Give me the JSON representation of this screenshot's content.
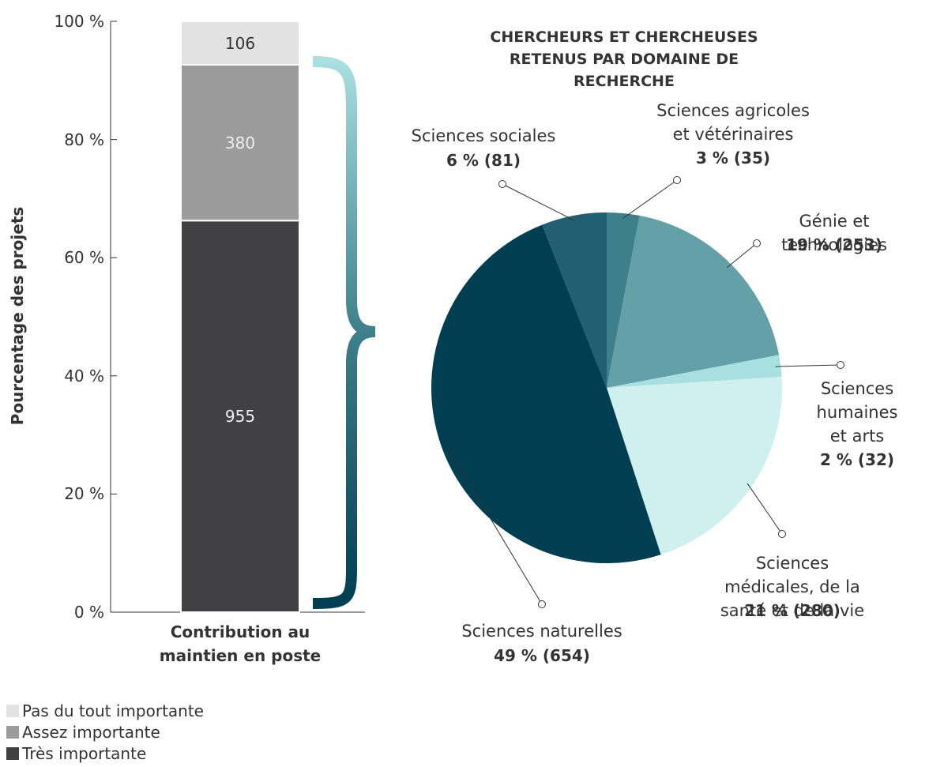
{
  "chart_data": [
    {
      "type": "bar",
      "stack": "percent",
      "categories": [
        "Contribution au\nmaintien en poste"
      ],
      "series": [
        {
          "name": "Très importante",
          "color": "#414143",
          "values": [
            955
          ]
        },
        {
          "name": "Assez importante",
          "color": "#9b9b9b",
          "values": [
            380
          ]
        },
        {
          "name": "Pas du tout importante",
          "color": "#e2e2e2",
          "values": [
            106
          ]
        }
      ],
      "ylabel": "Pourcentage des projets",
      "ylim": [
        0,
        100
      ],
      "yticks": [
        {
          "value": 0,
          "label": "0 %"
        },
        {
          "value": 20,
          "label": "20 %"
        },
        {
          "value": 40,
          "label": "40 %"
        },
        {
          "value": 60,
          "label": "60 %"
        },
        {
          "value": 80,
          "label": "80 %"
        },
        {
          "value": 100,
          "label": "100 %"
        }
      ],
      "legend": "bottom-left"
    },
    {
      "type": "pie",
      "title": "CHERCHEURS ET CHERCHEUSES\nRETENUS PAR DOMAINE DE RECHERCHE",
      "categories": [
        "Sciences agricoles\net vétérinaires",
        "Génie et technologies",
        "Sciences\nhumaines\net arts",
        "Sciences médicales, de la\nsanté et de la vie",
        "Sciences naturelles",
        "Sciences sociales"
      ],
      "values": [
        3,
        19,
        2,
        21,
        49,
        6
      ],
      "value_labels": [
        "3 % (35)",
        "19 % (253)",
        "2 % (32)",
        "21 % (280)",
        "49 % (654)",
        "6 % (81)"
      ],
      "colors": [
        "#3d7f8a",
        "#64a0a8",
        "#a8dfe0",
        "#d0f0f0",
        "#003f52",
        "#216070"
      ]
    }
  ]
}
